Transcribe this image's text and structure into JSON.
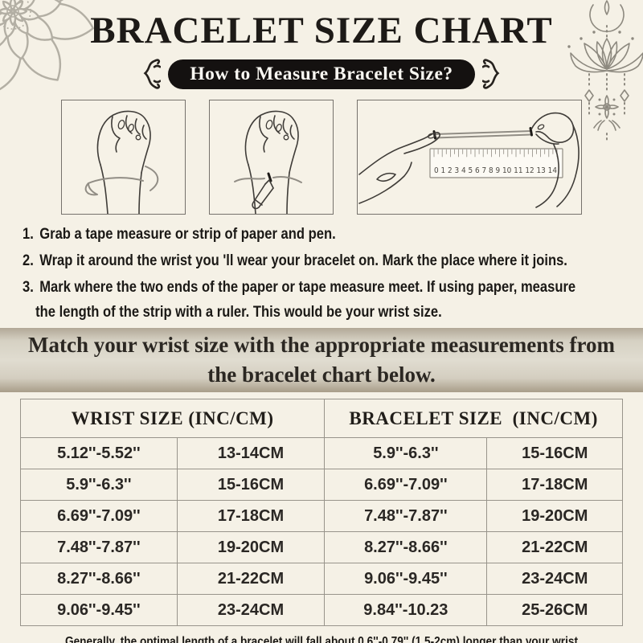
{
  "header": {
    "title": "BRACELET SIZE CHART",
    "badge": "How to Measure Bracelet Size?"
  },
  "icons": {
    "corner": "mandala-flower-decoration",
    "right": "lotus-hanging-ornament",
    "badge_flank": "squiggle-ornament"
  },
  "colors": {
    "background": "#f5f1e6",
    "ink": "#201d1a",
    "badge_bg": "#141110",
    "badge_text": "#faf8f2",
    "banner_mid": "#e0dcd0",
    "banner_edge": "#a89d89",
    "table_border": "#98948b",
    "decoration_gray": "#b3afa4"
  },
  "illustrations": [
    {
      "name": "wrap-tape-around-wrist"
    },
    {
      "name": "mark-wrist-with-pen"
    },
    {
      "name": "measure-strip-with-ruler",
      "ruler_numbers": "0 1 2 3 4 5 6 7 8 9 10 11 12 13 14"
    }
  ],
  "steps": [
    {
      "num": "1.",
      "line1": "Grab a tape measure or strip of paper and pen.",
      "line2": ""
    },
    {
      "num": "2.",
      "line1": "Wrap it around the wrist you 'll wear your bracelet on. Mark the place where it joins.",
      "line2": ""
    },
    {
      "num": "3.",
      "line1": "Mark where the two ends of the paper or tape measure meet. If using paper, measure",
      "line2": "the length of the strip with a ruler. This would be your wrist size."
    }
  ],
  "banner": {
    "text": "Match your wrist size with the appropriate measurements from the bracelet chart below."
  },
  "size_table": {
    "headers": [
      "WRIST SIZE (INC/CM)",
      "BRACELET SIZE  (INC/CM)"
    ],
    "rows": [
      [
        "5.12''-5.52''",
        "13-14CM",
        "5.9''-6.3''",
        "15-16CM"
      ],
      [
        "5.9''-6.3''",
        "15-16CM",
        "6.69''-7.09''",
        "17-18CM"
      ],
      [
        "6.69''-7.09''",
        "17-18CM",
        "7.48''-7.87''",
        "19-20CM"
      ],
      [
        "7.48''-7.87''",
        "19-20CM",
        "8.27''-8.66''",
        "21-22CM"
      ],
      [
        "8.27''-8.66''",
        "21-22CM",
        "9.06''-9.45''",
        "23-24CM"
      ],
      [
        "9.06''-9.45''",
        "23-24CM",
        "9.84''-10.23",
        "25-26CM"
      ]
    ]
  },
  "footer": {
    "note": "Generally, the optimal length of a bracelet will fall about 0.6''-0.79'' (1.5-2cm) longer than your wrist circumference."
  }
}
